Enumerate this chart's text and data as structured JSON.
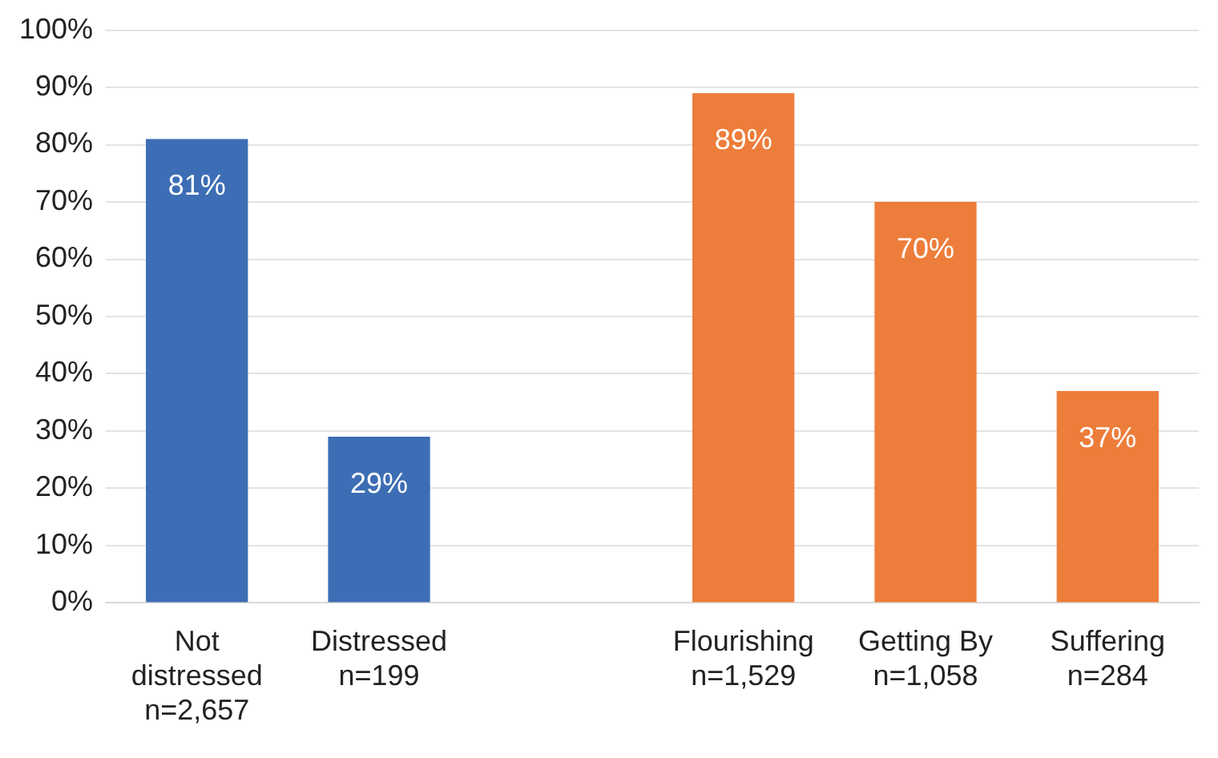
{
  "chart_data": {
    "type": "bar",
    "categories": [
      "Not\ndistressed\nn=2,657",
      "Distressed\nn=199",
      null,
      "Flourishing\nn=1,529",
      "Getting By\nn=1,058",
      "Suffering\nn=284"
    ],
    "values": [
      81,
      29,
      null,
      89,
      70,
      37
    ],
    "colors": [
      "#3d6db5",
      "#3d6db5",
      null,
      "#ed7d3a",
      "#ed7d3a",
      "#ed7d3a"
    ],
    "value_labels": [
      "81%",
      "29%",
      null,
      "89%",
      "70%",
      "37%"
    ],
    "ylim": [
      0,
      100
    ],
    "yticks": [
      {
        "value": 0,
        "label": "0%"
      },
      {
        "value": 10,
        "label": "10%"
      },
      {
        "value": 20,
        "label": "20%"
      },
      {
        "value": 30,
        "label": "30%"
      },
      {
        "value": 40,
        "label": "40%"
      },
      {
        "value": 50,
        "label": "50%"
      },
      {
        "value": 60,
        "label": "60%"
      },
      {
        "value": 70,
        "label": "70%"
      },
      {
        "value": 80,
        "label": "80%"
      },
      {
        "value": 90,
        "label": "90%"
      },
      {
        "value": 100,
        "label": "100%"
      }
    ],
    "grid": "y",
    "legend": false
  }
}
